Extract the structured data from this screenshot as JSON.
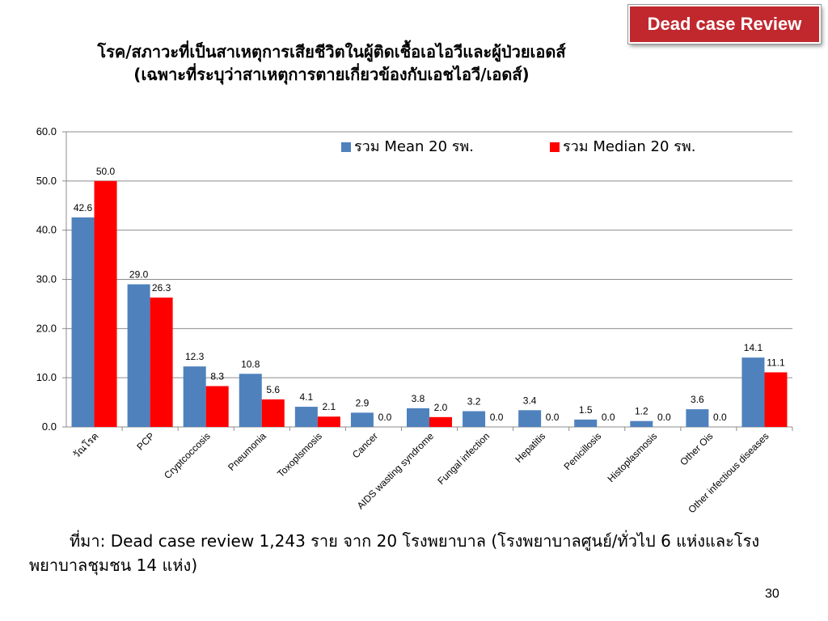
{
  "badge": {
    "label": "Dead case Review",
    "color": "#c0282e"
  },
  "title": {
    "line1": "โรค/สภาวะที่เป็นสาเหตุการเสียชีวิตในผู้ติดเชื้อเอไอวีและผู้ป่วยเอดส์",
    "line2": "(เฉพาะที่ระบุว่าสาเหตุการตายเกี่ยวข้องกับเอชไอวี/เอดส์)"
  },
  "chart_data": {
    "type": "bar",
    "categories": [
      "วัณโรค",
      "PCP",
      "Cryptcoccosis",
      "Pneumonia",
      "Toxoplsmosis",
      "Cancer",
      "AIDS wasting syndrome",
      "Fungal infection",
      "Hepatitis",
      "Penicillosis",
      "Histoplasmosis",
      "Other Ois",
      "Other infectious diseases"
    ],
    "series": [
      {
        "name": "รวม Mean 20 รพ.",
        "color": "#4f81bd",
        "values": [
          42.6,
          29.0,
          12.3,
          10.8,
          4.1,
          2.9,
          3.8,
          3.2,
          3.4,
          1.5,
          1.2,
          3.6,
          14.1
        ]
      },
      {
        "name": "รวม Median  20 รพ.",
        "color": "#ff0000",
        "values": [
          50.0,
          26.3,
          8.3,
          5.6,
          2.1,
          0.0,
          2.0,
          0.0,
          0.0,
          0.0,
          0.0,
          0.0,
          11.1
        ]
      }
    ],
    "ylim": [
      0,
      60
    ],
    "yticks": [
      "0.0",
      "10.0",
      "20.0",
      "30.0",
      "40.0",
      "50.0",
      "60.0"
    ],
    "grid": true,
    "legend": "top-right",
    "xlabel": "",
    "ylabel": ""
  },
  "source_note": "ที่มา: Dead case review 1,243 ราย จาก 20 โรงพยาบาล (โรงพยาบาลศูนย์/ทั่วไป 6 แห่งและโรงพยาบาลชุมชน 14 แห่ง)",
  "page_number": "30"
}
